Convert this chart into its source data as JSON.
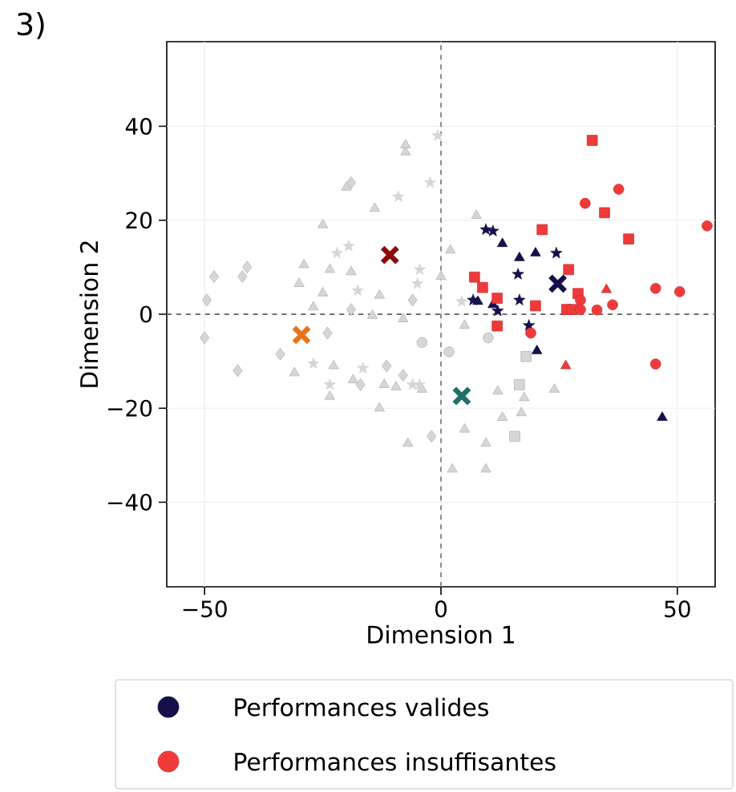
{
  "chart_data": {
    "type": "scatter",
    "title": "3)",
    "xlabel": "Dimension 1",
    "ylabel": "Dimension 2",
    "xlim": [
      -58,
      58
    ],
    "ylim": [
      -58,
      58
    ],
    "xticks": [
      {
        "value": -50,
        "label": "−50"
      },
      0,
      50
    ],
    "yticks": [
      {
        "value": -40,
        "label": "−40"
      },
      {
        "value": -20,
        "label": "−20"
      },
      0,
      20,
      40
    ],
    "grid": true,
    "legend": "bottom",
    "ref_lines": [
      {
        "axis": "x",
        "value": 0,
        "color": "#808080",
        "line_style": "dashed"
      },
      {
        "axis": "y",
        "value": 0,
        "color": "#707070",
        "line_style": "dashed"
      }
    ],
    "series": [
      {
        "color": "#d6d6d6",
        "marker": "diamond",
        "x": [
          -50,
          -49.5,
          -48,
          -42,
          -41,
          -43,
          -34,
          -24,
          -19,
          -19,
          -11.5,
          -8,
          -17,
          -2,
          -6
        ],
        "values": [
          -5,
          3,
          8,
          8,
          10,
          -12,
          -8.5,
          -4,
          28,
          1,
          -11,
          -13,
          -15,
          -26,
          3
        ]
      },
      {
        "color": "#d6d6d6",
        "marker": "triangle",
        "x": [
          -20,
          -7.5,
          -29,
          -25,
          -23.5,
          -31,
          -9.5,
          -18.6,
          7.5,
          -25,
          -7.5,
          -30,
          -27,
          -13,
          -7,
          -23.5,
          -8,
          2,
          -14,
          -19,
          -13,
          -14.5,
          -22.7,
          -12,
          -4,
          0,
          5,
          5,
          12,
          24,
          17.6,
          13,
          17,
          9.5,
          2.4,
          9.5
        ],
        "values": [
          27,
          34.5,
          10.5,
          4.5,
          9.5,
          -12.5,
          -15.5,
          -14,
          21,
          19,
          36,
          6.5,
          1.5,
          -20,
          -27.5,
          -17.5,
          -1,
          13.6,
          22.5,
          9,
          4,
          -0.3,
          -11,
          -15,
          -16,
          8,
          -24.5,
          -2.4,
          -16.4,
          -16,
          -17.8,
          -22,
          -21,
          -27.5,
          -33,
          -33
        ]
      },
      {
        "color": "#d6d6d6",
        "marker": "star",
        "x": [
          -19.5,
          -4.5,
          -27,
          -16.5,
          -4.5,
          -0.7,
          -22,
          -9,
          -2.3,
          -17.6,
          -5,
          -23.5,
          -6,
          4.4
        ],
        "values": [
          14.5,
          9.5,
          -10.5,
          -11.5,
          -15,
          38,
          13,
          25,
          28,
          5,
          6.5,
          -15,
          -15,
          2.7
        ]
      },
      {
        "color": "#d6d6d6",
        "marker": "circle",
        "x": [
          -4,
          1.7,
          10
        ],
        "values": [
          -6,
          -8,
          -5
        ]
      },
      {
        "color": "#d6d6d6",
        "marker": "square",
        "x": [
          18,
          16.6,
          15.6
        ],
        "values": [
          -9,
          -15,
          -26
        ]
      },
      {
        "name": "Performances valides",
        "color": "#14104a",
        "marker": "star",
        "x": [
          9.5,
          11,
          24.4,
          16.3,
          6.8,
          12,
          16.6,
          18.6
        ],
        "values": [
          18,
          17.7,
          13,
          8.5,
          3,
          0.7,
          3,
          -2.4
        ]
      },
      {
        "color": "#14104a",
        "marker": "triangle",
        "x": [
          13,
          16.6,
          20,
          7.8,
          11,
          20.3,
          46.8
        ],
        "values": [
          15,
          12,
          13,
          2.7,
          2,
          -7.8,
          -22
        ]
      },
      {
        "name": "Performances insuffisantes",
        "color": "#f03a3a",
        "marker": "square",
        "x": [
          32,
          34.6,
          39.7,
          21.4,
          7.1,
          8.8,
          11.9,
          20,
          27,
          29,
          26.6,
          27.8,
          11.9
        ],
        "values": [
          37,
          21.6,
          16,
          18,
          7.9,
          5.7,
          3.4,
          1.8,
          9.5,
          4.4,
          1,
          1,
          -2.5
        ]
      },
      {
        "color": "#f03a3a",
        "marker": "circle",
        "x": [
          37.6,
          30.5,
          56.3,
          45.4,
          50.5,
          29.5,
          29.5,
          33,
          36.3,
          19,
          45.4
        ],
        "values": [
          26.6,
          23.6,
          18.8,
          5.5,
          4.8,
          3,
          1,
          0.9,
          2,
          -4,
          -10.6
        ]
      },
      {
        "color": "#f03a3a",
        "marker": "triangle",
        "x": [
          35,
          26.4
        ],
        "values": [
          5.2,
          -11
        ]
      },
      {
        "marker": "cross",
        "colors": [
          "#e8731a",
          "#8b0a0a",
          "#1f6f6a",
          "#14104a"
        ],
        "x": [
          -29.5,
          -10.8,
          4.4,
          24.7
        ],
        "values": [
          -4.4,
          12.6,
          -17.4,
          6.5
        ]
      }
    ]
  }
}
